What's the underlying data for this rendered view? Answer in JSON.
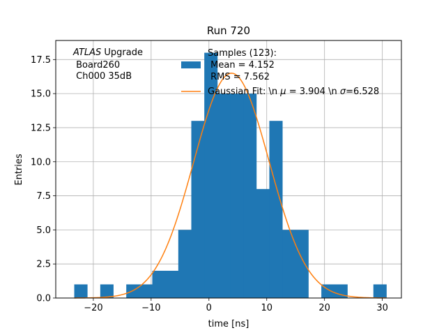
{
  "chart_data": {
    "type": "bar",
    "title": "Run 720",
    "xlabel": "time [ns]",
    "ylabel": "Entries",
    "xlim": [
      -26.5,
      33.3
    ],
    "ylim": [
      0,
      18.9
    ],
    "xticks": [
      -20,
      -10,
      0,
      10,
      20,
      30
    ],
    "xtick_labels": [
      "−20",
      "−10",
      "0",
      "10",
      "20",
      "30"
    ],
    "yticks": [
      0,
      2.5,
      5,
      7.5,
      10,
      12.5,
      15,
      17.5
    ],
    "ytick_labels": [
      "0.0",
      "2.5",
      "5.0",
      "7.5",
      "10.0",
      "12.5",
      "15.0",
      "17.5"
    ],
    "grid": true,
    "bin_width": 2.25,
    "histogram": {
      "name": "Samples (123):\n Mean = 4.152\n RMS = 7.562",
      "bin_left_edges": [
        -23.3,
        -21.05,
        -18.8,
        -16.55,
        -14.3,
        -12.05,
        -9.8,
        -7.55,
        -5.3,
        -3.05,
        -0.8,
        1.45,
        3.7,
        5.95,
        8.2,
        10.45,
        12.7,
        14.95,
        17.2,
        19.45,
        21.7,
        23.95,
        26.2,
        28.45
      ],
      "counts": [
        1,
        0,
        1,
        0,
        1,
        1,
        2,
        2,
        5,
        13,
        18,
        15,
        15,
        15,
        8,
        13,
        5,
        5,
        0,
        1,
        1,
        0,
        0,
        1
      ],
      "color": "#1f77b4"
    },
    "fit": {
      "name": "Gaussian Fit: \\n $\\mu$ = 3.904 \\n $\\sigma$=6.528",
      "mu": 3.904,
      "sigma": 6.528,
      "peak": 16.5,
      "x_range": [
        -23.3,
        30.7
      ],
      "color": "#ff7f0e"
    },
    "legend": {
      "placement": "top-center",
      "sample_lines": [
        "Samples (123):",
        " Mean = 4.152",
        " RMS = 7.562"
      ],
      "fit_line_parts": [
        "Gaussian Fit: \\n ",
        "μ",
        " = 3.904 \\n ",
        "σ",
        "=6.528"
      ]
    },
    "annotation": {
      "placement": "top-left",
      "italic": "ATLAS",
      "line1_rest": " Upgrade",
      "line2": " Board260",
      "line3": " Ch000 35dB"
    }
  }
}
